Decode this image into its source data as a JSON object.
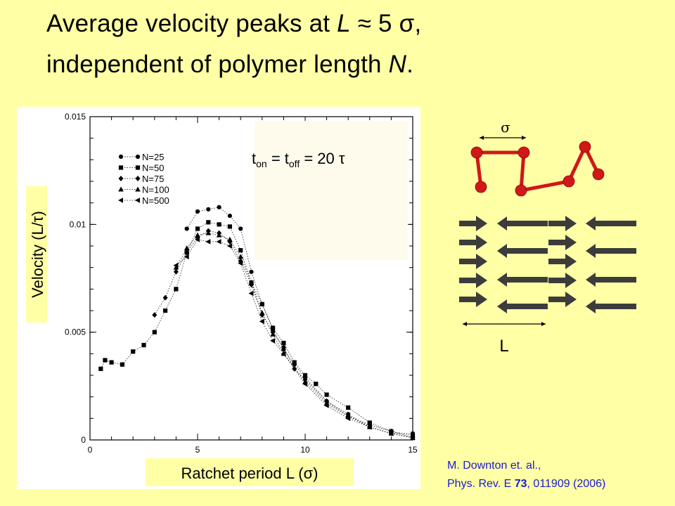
{
  "slide": {
    "title_line1_pre": "Average velocity peaks at ",
    "title_line1_L": "L",
    "title_line1_mid": " ≈ 5 ",
    "title_line1_sigma": "σ",
    "title_line1_end": ",",
    "title_line2_pre": "independent of polymer length ",
    "title_line2_N": "N",
    "title_line2_end": ".",
    "citation_line1": "M. Downton et. al.,",
    "citation_line2_pre": "Phys. Rev. E ",
    "citation_line2_vol": "73",
    "citation_line2_post": ", 011909 (2006)"
  },
  "schematic": {
    "sigma_label": "σ",
    "L_label": "L",
    "bead_color": "#d01818",
    "arrow_color": "#3c3c3c"
  },
  "colors": {
    "background": "#ffffa6",
    "citation": "#1a1ad8"
  },
  "chart_data": {
    "type": "scatter",
    "ylabel_pre": "Velocity (L/",
    "ylabel_tau": "τ",
    "ylabel_post": ")",
    "xlabel_pre": "Ratchet period L (",
    "xlabel_sigma": "σ",
    "xlabel_post": ")",
    "annotation": {
      "t": "t",
      "on": "on",
      "eq1": " = t",
      "off": "off",
      "eq2": " = 20 ",
      "tau": "τ"
    },
    "xlim": [
      0,
      15
    ],
    "ylim": [
      0,
      0.015
    ],
    "xticks": [
      "0",
      "5",
      "10",
      "15"
    ],
    "yticks": [
      "0",
      "0.005",
      "0.01",
      "0.015"
    ],
    "legend_position": "top-left",
    "series": [
      {
        "name": "N=25",
        "marker": "circle",
        "x": [
          4.5,
          5,
          5.5,
          6,
          6.5,
          7,
          7.5,
          8,
          8.5,
          9,
          9.5,
          10,
          11,
          12,
          13,
          14,
          15
        ],
        "y": [
          0.0098,
          0.0106,
          0.0107,
          0.0108,
          0.0104,
          0.0098,
          0.0078,
          0.0063,
          0.0051,
          0.0042,
          0.0035,
          0.0029,
          0.0018,
          0.0012,
          0.0006,
          0.0003,
          0.0003
        ]
      },
      {
        "name": "N=50",
        "marker": "square",
        "x": [
          0.5,
          0.7,
          1,
          1.5,
          2,
          2.5,
          3,
          3.5,
          4,
          4.5,
          5,
          5.5,
          6,
          6.5,
          7,
          7.5,
          8,
          8.5,
          9,
          9.5,
          10,
          10.5,
          11,
          12,
          13,
          14,
          15
        ],
        "y": [
          0.0033,
          0.0037,
          0.0036,
          0.0035,
          0.0041,
          0.0044,
          0.005,
          0.006,
          0.007,
          0.0087,
          0.0098,
          0.0101,
          0.01,
          0.0099,
          0.0088,
          0.0073,
          0.0063,
          0.0052,
          0.0045,
          0.0036,
          0.003,
          0.0026,
          0.0021,
          0.0015,
          0.0008,
          0.0004,
          0.0002
        ]
      },
      {
        "name": "N=75",
        "marker": "diamond",
        "x": [
          3,
          3.5,
          4,
          4.5,
          5,
          5.5,
          6,
          6.5,
          7,
          7.5,
          8,
          8.5,
          9,
          9.5,
          10,
          11,
          12,
          13,
          14,
          15
        ],
        "y": [
          0.0058,
          0.0066,
          0.0078,
          0.0087,
          0.0094,
          0.0097,
          0.0096,
          0.0092,
          0.0083,
          0.0072,
          0.0058,
          0.005,
          0.0043,
          0.0033,
          0.0028,
          0.0018,
          0.0011,
          0.0007,
          0.0004,
          0.0001
        ]
      },
      {
        "name": "N=100",
        "marker": "triangle-up",
        "x": [
          4,
          4.5,
          5,
          5.5,
          6,
          6.5,
          7,
          7.5,
          8,
          8.5,
          9,
          10,
          11,
          12,
          13,
          14,
          15
        ],
        "y": [
          0.008,
          0.0089,
          0.0095,
          0.0096,
          0.0095,
          0.0093,
          0.0085,
          0.0073,
          0.0059,
          0.0049,
          0.004,
          0.0027,
          0.0017,
          0.0011,
          0.0006,
          0.0003,
          0.0001
        ]
      },
      {
        "name": "N=500",
        "marker": "triangle-left",
        "x": [
          4,
          4.5,
          5,
          5.5,
          6,
          6.5,
          7,
          7.5,
          8,
          8.5,
          9,
          10,
          11,
          12,
          13,
          14,
          15
        ],
        "y": [
          0.0081,
          0.0085,
          0.0093,
          0.0092,
          0.0092,
          0.009,
          0.0082,
          0.0068,
          0.0055,
          0.0046,
          0.004,
          0.0026,
          0.0016,
          0.001,
          0.0006,
          0.0003,
          0.0001
        ]
      }
    ]
  }
}
